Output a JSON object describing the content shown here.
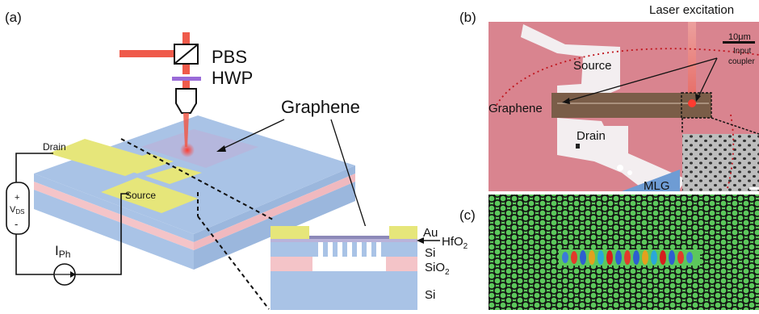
{
  "panels": {
    "a": {
      "label": "(a)",
      "pbs": "PBS",
      "hwp": "HWP",
      "graphene": "Graphene",
      "drain": "Drain",
      "source": "Source",
      "vds_plus": "+",
      "vds_main": "V",
      "vds_sub": "DS",
      "vds_minus": "-",
      "iph_main": "I",
      "iph_sub": "Ph",
      "inset_layers": {
        "au": "Au",
        "hfo2_main": "HfO",
        "hfo2_sub": "2",
        "si_top": "Si",
        "sio2_main": "SiO",
        "sio2_sub": "2",
        "si_bottom": "Si"
      }
    },
    "b": {
      "label": "(b)",
      "laser": "Laser excitation",
      "scale_bar": "10μm",
      "input_line1": "Input",
      "input_line2": "coupler",
      "source": "Source",
      "graphene": "Graphene",
      "drain": "Drain",
      "mlg": "MLG"
    },
    "c": {
      "label": "(c)"
    }
  },
  "colors": {
    "substrate_blue": "#a9c3e6",
    "oxide_pink": "#f4c4c8",
    "gold": "#e6e67a",
    "laser_red": "#ef5a4a",
    "hwp_purple": "#9a6bd8",
    "micro_pink": "#d9848f",
    "micro_graphene": "#7a5d48",
    "sim_green": "#5cc85c"
  }
}
